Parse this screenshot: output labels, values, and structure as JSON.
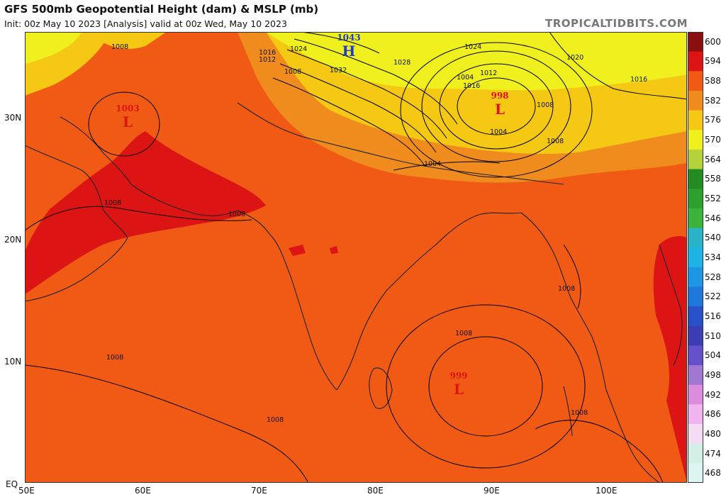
{
  "header": {
    "title": "GFS 500mb Geopotential Height (dam) & MSLP (mb)",
    "subtitle": "Init: 00z May 10 2023   [Analysis]   valid at 00z Wed, May 10 2023",
    "credit": "TROPICALTIDBITS.COM"
  },
  "axes": {
    "lat_labels": [
      "30N",
      "20N",
      "10N",
      "EQ"
    ],
    "lon_labels": [
      "50E",
      "60E",
      "70E",
      "80E",
      "90E",
      "100E"
    ]
  },
  "legend": {
    "levels": [
      "600",
      "594",
      "588",
      "582",
      "576",
      "570",
      "564",
      "558",
      "552",
      "546",
      "540",
      "534",
      "528",
      "522",
      "516",
      "510",
      "504",
      "498",
      "492",
      "486",
      "480",
      "474",
      "468"
    ],
    "colors": [
      "#8c0f0f",
      "#dc1414",
      "#f05a14",
      "#f08c1e",
      "#f5c814",
      "#f0f01e",
      "#b4d23c",
      "#228b22",
      "#2ea02e",
      "#3cb43c",
      "#2ab4c8",
      "#1eb4e6",
      "#1e96e6",
      "#1e78dc",
      "#2850c8",
      "#3c3cb4",
      "#6450c8",
      "#a078d2",
      "#dc8cdc",
      "#f0b4f0",
      "#f5dcf5",
      "#d2f0e6",
      "#dcf5f0"
    ]
  },
  "pressure": {
    "centers": [
      {
        "type": "H",
        "value": "1043",
        "color": "#1e3cd2"
      },
      {
        "type": "L",
        "value": "998",
        "color": "#dc1414"
      },
      {
        "type": "L",
        "value": "1003",
        "color": "#dc1414"
      },
      {
        "type": "L",
        "value": "999",
        "color": "#dc1414"
      }
    ],
    "isobar_labels": [
      "1008",
      "1008",
      "1016",
      "1012",
      "1024",
      "1032",
      "1028",
      "1024",
      "1020",
      "1016",
      "1008",
      "1016",
      "1012",
      "1004",
      "1008",
      "1004",
      "1008",
      "1004",
      "1008",
      "1008",
      "1008",
      "1008",
      "1008",
      "1008",
      "1004"
    ]
  }
}
